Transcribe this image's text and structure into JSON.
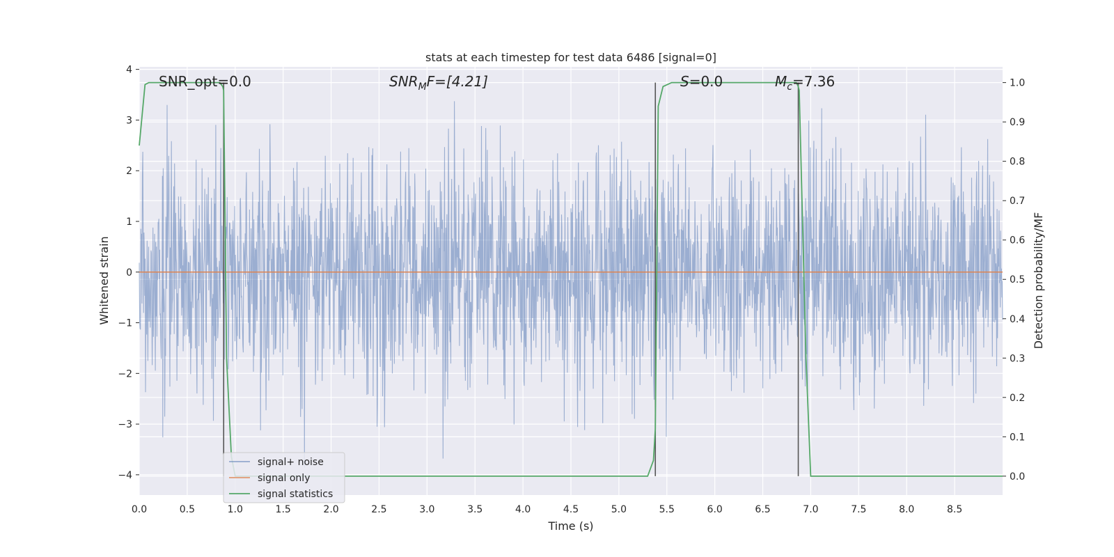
{
  "chart_data": {
    "type": "line",
    "title": "stats at each timestep for test data 6486 [signal=0]",
    "xlabel": "Time (s)",
    "ylabel_left": "Whitened strain",
    "ylabel_right": "Detection probability/MF",
    "xlim": [
      0.0,
      9.0
    ],
    "ylim_left": [
      -4.4,
      4.05
    ],
    "ylim_right": [
      -0.048,
      1.04
    ],
    "xticks": [
      "0.0",
      "0.5",
      "1.0",
      "1.5",
      "2.0",
      "2.5",
      "3.0",
      "3.5",
      "4.0",
      "4.5",
      "5.0",
      "5.5",
      "6.0",
      "6.5",
      "7.0",
      "7.5",
      "8.0",
      "8.5"
    ],
    "yticks_left": [
      "−4",
      "−3",
      "−2",
      "−1",
      "0",
      "1",
      "2",
      "3",
      "4"
    ],
    "yticks_right": [
      "0.0",
      "0.1",
      "0.2",
      "0.3",
      "0.4",
      "0.5",
      "0.6",
      "0.7",
      "0.8",
      "0.9",
      "1.0"
    ],
    "grid": true,
    "legend_position": "lower-left",
    "annotations": {
      "snr_opt": "SNR_opt=0.0",
      "snr_mf_main": "SNR",
      "snr_mf_sub": "M",
      "snr_mf_rest": "F=[4.21]",
      "s_main": "S",
      "s_rest": "=0.0",
      "mc_main": "M",
      "mc_sub": "c",
      "mc_rest": "=7.36"
    },
    "vertical_markers": [
      0.88,
      5.38,
      6.87
    ],
    "series": [
      {
        "name": "signal+ noise",
        "color": "#4c72b0",
        "axis": "left",
        "description_values": "whitened noise, roughly within [-4, 4]"
      },
      {
        "name": "signal only",
        "color": "#dd8452",
        "axis": "left",
        "x": [
          0.0,
          9.0
        ],
        "y": [
          0.0,
          0.0
        ]
      },
      {
        "name": "signal statistics",
        "color": "#55a868",
        "axis": "right",
        "x": [
          0.0,
          0.06,
          0.1,
          0.15,
          0.84,
          0.87,
          0.88,
          0.91,
          0.96,
          1.0,
          1.1,
          5.3,
          5.36,
          5.38,
          5.41,
          5.46,
          5.55,
          6.85,
          6.87,
          6.88,
          6.95,
          7.0,
          9.0
        ],
        "y": [
          0.84,
          0.995,
          1.0,
          1.0,
          1.0,
          0.99,
          0.98,
          0.3,
          0.05,
          0.0,
          0.0,
          0.0,
          0.04,
          0.12,
          0.94,
          0.99,
          1.0,
          1.0,
          0.99,
          0.98,
          0.3,
          0.0,
          0.0
        ]
      }
    ]
  }
}
